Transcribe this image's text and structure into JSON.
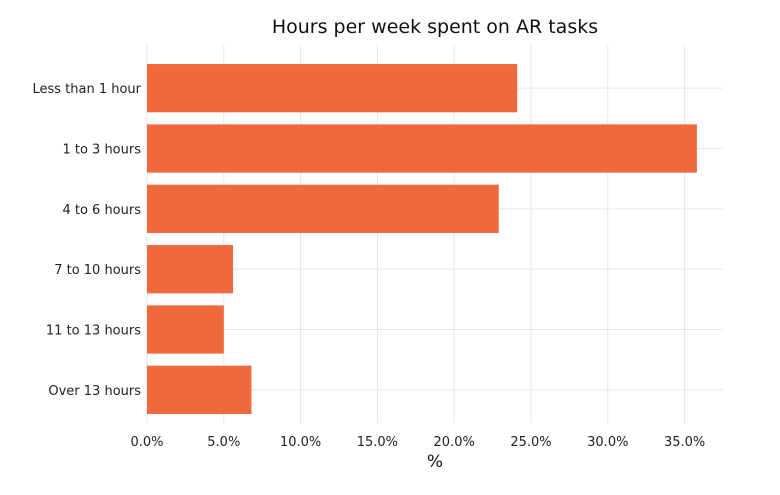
{
  "chart_data": {
    "type": "bar",
    "orientation": "horizontal",
    "title": "Hours per week spent on AR tasks",
    "xlabel": "%",
    "ylabel": "",
    "categories": [
      "Less than 1 hour",
      "1 to 3 hours",
      "4 to 6 hours",
      "7 to 10 hours",
      "11 to 13 hours",
      "Over 13 hours"
    ],
    "values": [
      24.1,
      35.8,
      22.9,
      5.6,
      5.0,
      6.8
    ],
    "xlim": [
      0,
      37.5
    ],
    "xticks": [
      0,
      5,
      10,
      15,
      20,
      25,
      30,
      35
    ],
    "xtick_labels": [
      "0.0%",
      "5.0%",
      "10.0%",
      "15.0%",
      "20.0%",
      "25.0%",
      "30.0%",
      "35.0%"
    ],
    "grid": true,
    "legend": "none",
    "bar_color": "#f0693c",
    "grid_color": "#e6e6e6"
  }
}
